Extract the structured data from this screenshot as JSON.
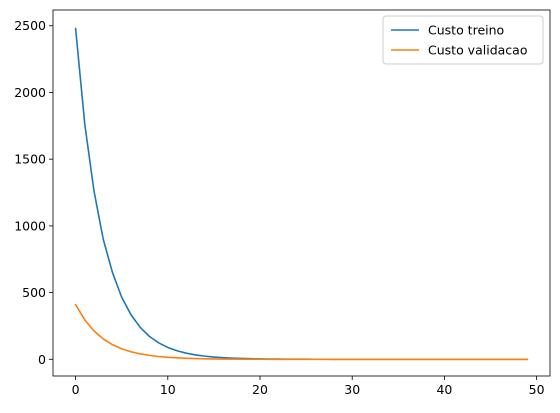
{
  "chart_data": {
    "type": "line",
    "title": "",
    "xlabel": "",
    "ylabel": "",
    "xlim": [
      -2.45,
      51.45
    ],
    "ylim": [
      -125,
      2618
    ],
    "xticks": [
      0,
      10,
      20,
      30,
      40,
      50
    ],
    "yticks": [
      0,
      500,
      1000,
      1500,
      2000,
      2500
    ],
    "grid": false,
    "legend_position": "top-right",
    "x": [
      0,
      1,
      2,
      3,
      4,
      5,
      6,
      7,
      8,
      9,
      10,
      11,
      12,
      13,
      14,
      15,
      16,
      17,
      18,
      19,
      20,
      21,
      22,
      23,
      24,
      25,
      26,
      27,
      28,
      29,
      30,
      31,
      32,
      33,
      34,
      35,
      36,
      37,
      38,
      39,
      40,
      41,
      42,
      43,
      44,
      45,
      46,
      47,
      48,
      49
    ],
    "series": [
      {
        "name": "Custo treino",
        "color": "#1f77b4",
        "values": [
          2480,
          1760,
          1260,
          900,
          650,
          465,
          335,
          240,
          172,
          124,
          89,
          64,
          46,
          33,
          24,
          17,
          12,
          9,
          6.5,
          4.7,
          3.4,
          2.5,
          1.8,
          1.3,
          1,
          0.8,
          0.6,
          0.5,
          0.4,
          0.3,
          0.3,
          0.2,
          0.2,
          0.2,
          0.1,
          0.1,
          0.1,
          0.1,
          0.1,
          0.1,
          0.1,
          0.1,
          0.1,
          0.1,
          0.1,
          0.1,
          0.1,
          0.1,
          0.1,
          0.1
        ]
      },
      {
        "name": "Custo validacao",
        "color": "#ff7f0e",
        "values": [
          410,
          295,
          212,
          153,
          110,
          79,
          57,
          41,
          29.5,
          21.2,
          15.3,
          11,
          7.9,
          5.7,
          4.1,
          3,
          2.1,
          1.5,
          1.1,
          0.8,
          0.6,
          0.4,
          0.3,
          0.2,
          0.2,
          0.1,
          0.1,
          0.1,
          0.1,
          0.1,
          0.1,
          0.1,
          0.1,
          0.1,
          0.1,
          0.1,
          0.1,
          0.1,
          0.1,
          0.1,
          0.1,
          0.1,
          0.1,
          0.1,
          0.1,
          0.1,
          0.1,
          0.1,
          0.1,
          0.1
        ]
      }
    ]
  }
}
